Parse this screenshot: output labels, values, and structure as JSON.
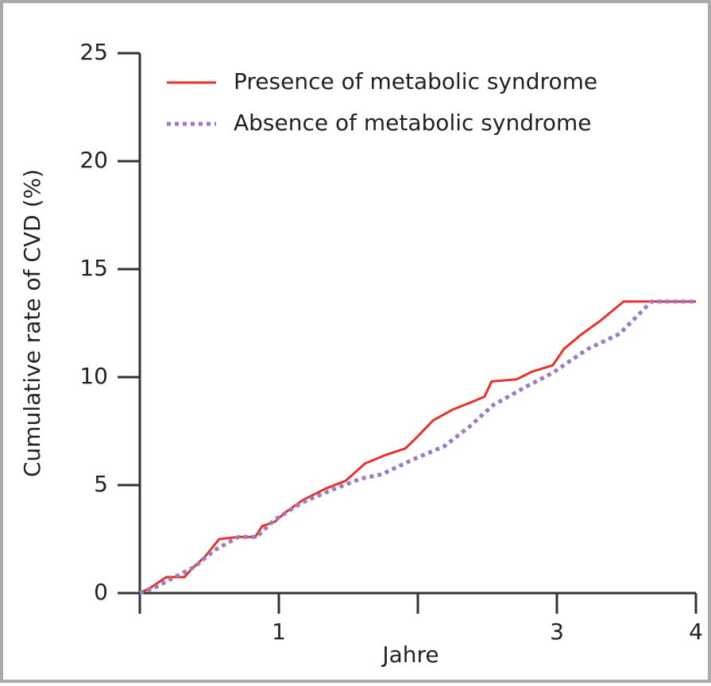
{
  "chart_data": {
    "type": "line",
    "xlabel": "Jahre",
    "ylabel": "Cumulative rate of CVD (%)",
    "xlim": [
      0,
      4
    ],
    "ylim": [
      0,
      25
    ],
    "xticks": [
      {
        "value": 0,
        "label": null
      },
      1,
      {
        "value": 2,
        "label": null
      },
      3,
      4
    ],
    "yticks": [
      0,
      5,
      10,
      15,
      20,
      25
    ],
    "legend": "upper-left",
    "series": [
      {
        "name": "Presence of metabolic syndrome",
        "color": "#e8312a",
        "style": "solid",
        "x": [
          0,
          0.08,
          0.19,
          0.32,
          0.37,
          0.47,
          0.57,
          0.71,
          0.83,
          0.88,
          0.97,
          1.05,
          1.17,
          1.34,
          1.48,
          1.62,
          1.77,
          1.91,
          1.99,
          2.11,
          2.25,
          2.37,
          2.48,
          2.53,
          2.71,
          2.82,
          2.97,
          3.05,
          3.17,
          3.31,
          3.48,
          4
        ],
        "values": [
          0,
          0.26,
          0.74,
          0.74,
          1.1,
          1.7,
          2.5,
          2.6,
          2.6,
          3.1,
          3.3,
          3.75,
          4.3,
          4.85,
          5.2,
          6.0,
          6.4,
          6.7,
          7.2,
          8.0,
          8.5,
          8.8,
          9.1,
          9.8,
          9.9,
          10.25,
          10.55,
          11.3,
          11.95,
          12.6,
          13.5,
          13.5
        ]
      },
      {
        "name": "Absence of metabolic syndrome",
        "color": "#9a7bc4",
        "style": "dotted",
        "x": [
          0,
          0.11,
          0.25,
          0.39,
          0.54,
          0.71,
          0.84,
          0.97,
          1.17,
          1.39,
          1.59,
          1.74,
          1.97,
          2.19,
          2.37,
          2.54,
          2.79,
          2.97,
          3.22,
          3.45,
          3.68,
          4
        ],
        "values": [
          0,
          0.26,
          0.74,
          1.2,
          2.0,
          2.6,
          2.6,
          3.4,
          4.2,
          4.8,
          5.3,
          5.5,
          6.2,
          6.8,
          7.7,
          8.7,
          9.6,
          10.2,
          11.3,
          12.0,
          13.5,
          13.5
        ]
      }
    ]
  }
}
